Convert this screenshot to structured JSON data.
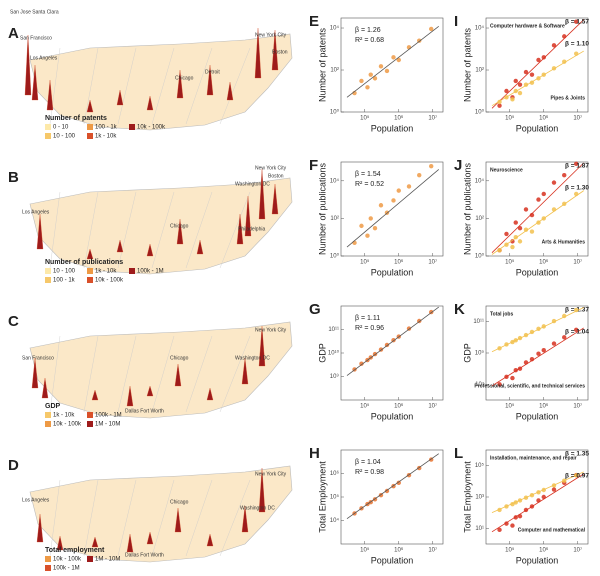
{
  "maps": [
    {
      "label": "A",
      "cities": [
        "San Jose Santa Clara",
        "San Francisco",
        "Los Angeles",
        "Chicago",
        "Detroit",
        "New York City",
        "Boston"
      ],
      "legend_title": "Number of patents",
      "legend": [
        "0 - 10",
        "10 - 100",
        "100 - 1k",
        "1k - 10k",
        "10k - 100k"
      ],
      "legend_colors": [
        "#fde9a9",
        "#f6c86a",
        "#ee9a45",
        "#d9502a",
        "#9e1b1b"
      ]
    },
    {
      "label": "B",
      "cities": [
        "Los Angeles",
        "Chicago",
        "Philadelphia",
        "Washington DC",
        "New York City",
        "Boston"
      ],
      "legend_title": "Number of publications",
      "legend": [
        "10 - 100",
        "100 - 1k",
        "1k - 10k",
        "10k - 100k",
        "100k - 1M"
      ],
      "legend_colors": [
        "#fde9a9",
        "#f6c86a",
        "#ee9a45",
        "#d9502a",
        "#9e1b1b"
      ]
    },
    {
      "label": "C",
      "cities": [
        "San Francisco",
        "Chicago",
        "Dallas Fort Worth",
        "Washington DC",
        "New York City"
      ],
      "legend_title": "GDP",
      "legend": [
        "1k - 10k",
        "10k - 100k",
        "100k - 1M",
        "1M - 10M"
      ],
      "legend_colors": [
        "#f6c86a",
        "#ee9a45",
        "#d9502a",
        "#9e1b1b"
      ]
    },
    {
      "label": "D",
      "cities": [
        "Los Angeles",
        "Chicago",
        "Dallas Fort Worth",
        "Washington DC",
        "New York City"
      ],
      "legend_title": "Total employment",
      "legend": [
        "10k - 100k",
        "100k - 1M",
        "1M - 10M"
      ],
      "legend_colors": [
        "#ee9a45",
        "#d9502a",
        "#9e1b1b"
      ]
    }
  ],
  "chart_data": [
    {
      "type": "scatter",
      "panel_label": "E",
      "xlabel": "Population",
      "ylabel": "Number of patents",
      "log": true,
      "xlim": [
        20000,
        20000000
      ],
      "xticks": [
        {
          "value": 100000,
          "label": "10⁵"
        },
        {
          "value": 1000000,
          "label": "10⁶"
        },
        {
          "value": 10000000,
          "label": "10⁷"
        }
      ],
      "ylim": [
        1,
        30000
      ],
      "yticks": [
        {
          "value": 1,
          "label": "10⁰"
        },
        {
          "value": 100,
          "label": "10²"
        },
        {
          "value": 10000,
          "label": "10⁴"
        }
      ],
      "annotations": [
        "β = 1.26",
        "R² = 0.68"
      ],
      "x": [
        50000,
        80000,
        120000,
        150000,
        200000,
        300000,
        450000,
        700000,
        1000000,
        2000000,
        4000000,
        9000000
      ],
      "series": [
        {
          "color": "#ee9a45",
          "values": [
            8,
            30,
            15,
            60,
            40,
            150,
            90,
            400,
            300,
            1200,
            2500,
            9000
          ],
          "trend_x": [
            30000,
            15000000
          ],
          "trend_y": [
            5,
            12000
          ]
        }
      ]
    },
    {
      "type": "scatter",
      "panel_label": "F",
      "xlabel": "Population",
      "ylabel": "Number of publications",
      "log": true,
      "xlim": [
        20000,
        20000000
      ],
      "xticks": [
        {
          "value": 100000,
          "label": "10⁵"
        },
        {
          "value": 1000000,
          "label": "10⁶"
        },
        {
          "value": 10000000,
          "label": "10⁷"
        }
      ],
      "ylim": [
        1,
        100000
      ],
      "yticks": [
        {
          "value": 1,
          "label": "10⁰"
        },
        {
          "value": 100,
          "label": "10²"
        },
        {
          "value": 10000,
          "label": "10⁴"
        }
      ],
      "annotations": [
        "β = 1.54",
        "R² = 0.52"
      ],
      "x": [
        50000,
        80000,
        120000,
        150000,
        200000,
        300000,
        450000,
        700000,
        1000000,
        2000000,
        4000000,
        9000000
      ],
      "series": [
        {
          "color": "#ee9a45",
          "values": [
            5,
            40,
            12,
            100,
            30,
            500,
            200,
            900,
            3000,
            5000,
            20000,
            60000
          ],
          "trend_x": [
            30000,
            15000000
          ],
          "trend_y": [
            3,
            40000
          ]
        }
      ]
    },
    {
      "type": "scatter",
      "panel_label": "G",
      "xlabel": "Population",
      "ylabel": "GDP",
      "log": true,
      "xlim": [
        20000,
        20000000
      ],
      "xticks": [
        {
          "value": 100000,
          "label": "10⁵"
        },
        {
          "value": 1000000,
          "label": "10⁶"
        },
        {
          "value": 10000000,
          "label": "10⁷"
        }
      ],
      "ylim": [
        100000000,
        1000000000000
      ],
      "yticks": [
        {
          "value": 1000000000,
          "label": "10⁹"
        },
        {
          "value": 10000000000,
          "label": "10¹⁰"
        },
        {
          "value": 100000000000,
          "label": "10¹¹"
        }
      ],
      "annotations": [
        "β = 1.11",
        "R² = 0.96"
      ],
      "x": [
        50000,
        80000,
        120000,
        150000,
        200000,
        300000,
        450000,
        700000,
        1000000,
        2000000,
        4000000,
        9000000
      ],
      "series": [
        {
          "color": "#e8732f",
          "values": [
            2000000000,
            3500000000,
            5000000000,
            6500000000,
            9000000000,
            14000000000,
            22000000000,
            35000000000,
            50000000000,
            110000000000,
            230000000000,
            550000000000
          ],
          "trend_x": [
            30000,
            15000000
          ],
          "trend_y": [
            1100000000,
            900000000000
          ]
        }
      ]
    },
    {
      "type": "scatter",
      "panel_label": "H",
      "xlabel": "Population",
      "ylabel": "Total Employment",
      "log": true,
      "xlim": [
        20000,
        20000000
      ],
      "xticks": [
        {
          "value": 100000,
          "label": "10⁵"
        },
        {
          "value": 1000000,
          "label": "10⁶"
        },
        {
          "value": 10000000,
          "label": "10⁷"
        }
      ],
      "ylim": [
        1000,
        10000000
      ],
      "yticks": [
        {
          "value": 10000,
          "label": "10⁴"
        },
        {
          "value": 100000,
          "label": "10⁵"
        },
        {
          "value": 1000000,
          "label": "10⁶"
        }
      ],
      "annotations": [
        "β = 1.04",
        "R² = 0.98"
      ],
      "x": [
        50000,
        80000,
        120000,
        150000,
        200000,
        300000,
        450000,
        700000,
        1000000,
        2000000,
        4000000,
        9000000
      ],
      "series": [
        {
          "color": "#e8732f",
          "values": [
            20000,
            33000,
            50000,
            60000,
            80000,
            120000,
            180000,
            290000,
            400000,
            850000,
            1700000,
            3900000
          ],
          "trend_x": [
            30000,
            15000000
          ],
          "trend_y": [
            12000,
            7000000
          ]
        }
      ]
    },
    {
      "type": "scatter",
      "panel_label": "I",
      "xlabel": "Population",
      "ylabel": "Number of patents",
      "log": true,
      "xlim": [
        20000,
        20000000
      ],
      "xticks": [
        {
          "value": 100000,
          "label": "10⁵"
        },
        {
          "value": 1000000,
          "label": "10⁶"
        },
        {
          "value": 10000000,
          "label": "10⁷"
        }
      ],
      "ylim": [
        1,
        30000
      ],
      "yticks": [
        {
          "value": 1,
          "label": "10⁰"
        },
        {
          "value": 100,
          "label": "10²"
        },
        {
          "value": 10000,
          "label": "10⁴"
        }
      ],
      "x": [
        50000,
        80000,
        120000,
        150000,
        200000,
        300000,
        450000,
        700000,
        1000000,
        2000000,
        4000000,
        9000000
      ],
      "series": [
        {
          "name": "Computer hardware & Software",
          "beta": "β = 1.57",
          "color": "#d7301f",
          "values": [
            2,
            10,
            5,
            30,
            20,
            80,
            60,
            300,
            400,
            1500,
            4000,
            20000
          ],
          "trend_x": [
            30000,
            15000000
          ],
          "trend_y": [
            1.5,
            25000
          ]
        },
        {
          "name": "Pipes & Joints",
          "beta": "β = 1.10",
          "color": "#f2c14e",
          "values": [
            3,
            5,
            4,
            10,
            8,
            20,
            25,
            40,
            60,
            120,
            250,
            600
          ],
          "trend_x": [
            30000,
            15000000
          ],
          "trend_y": [
            2,
            800
          ]
        }
      ]
    },
    {
      "type": "scatter",
      "panel_label": "J",
      "xlabel": "Population",
      "ylabel": "Number of publications",
      "log": true,
      "xlim": [
        20000,
        20000000
      ],
      "xticks": [
        {
          "value": 100000,
          "label": "10⁵"
        },
        {
          "value": 1000000,
          "label": "10⁶"
        },
        {
          "value": 10000000,
          "label": "10⁷"
        }
      ],
      "ylim": [
        1,
        100000
      ],
      "yticks": [
        {
          "value": 1,
          "label": "10⁰"
        },
        {
          "value": 100,
          "label": "10²"
        },
        {
          "value": 10000,
          "label": "10⁴"
        }
      ],
      "x": [
        50000,
        80000,
        120000,
        150000,
        200000,
        300000,
        450000,
        700000,
        1000000,
        2000000,
        4000000,
        9000000
      ],
      "series": [
        {
          "name": "Neuroscience",
          "beta": "β = 1.87",
          "color": "#d7301f",
          "values": [
            2,
            15,
            6,
            60,
            30,
            300,
            150,
            1000,
            2000,
            8000,
            20000,
            80000
          ],
          "trend_x": [
            30000,
            15000000
          ],
          "trend_y": [
            1.5,
            90000
          ]
        },
        {
          "name": "Arts & Humanities",
          "beta": "β = 1.30",
          "color": "#f2c14e",
          "values": [
            2,
            4,
            3,
            10,
            6,
            25,
            20,
            60,
            100,
            300,
            600,
            2000
          ],
          "trend_x": [
            30000,
            15000000
          ],
          "trend_y": [
            1.2,
            3000
          ]
        }
      ]
    },
    {
      "type": "scatter",
      "panel_label": "K",
      "xlabel": "Population",
      "ylabel": "GDP",
      "log": true,
      "xlim": [
        20000,
        20000000
      ],
      "xticks": [
        {
          "value": 100000,
          "label": "10⁵"
        },
        {
          "value": 1000000,
          "label": "10⁶"
        },
        {
          "value": 10000000,
          "label": "10⁷"
        }
      ],
      "ylim": [
        1000000,
        1000000000000
      ],
      "yticks": [
        {
          "value": 10000000,
          "label": "10⁷"
        },
        {
          "value": 1000000000,
          "label": "10⁹"
        },
        {
          "value": 100000000000,
          "label": "10¹¹"
        }
      ],
      "x": [
        50000,
        80000,
        120000,
        150000,
        200000,
        300000,
        450000,
        700000,
        1000000,
        2000000,
        4000000,
        9000000
      ],
      "series": [
        {
          "name": "Professional, scientific, and technical services",
          "beta": "β = 1.37",
          "color": "#d7301f",
          "values": [
            10000000,
            30000000,
            25000000,
            80000000,
            100000000,
            250000000,
            400000000,
            900000000,
            1500000000,
            4000000000,
            10000000000,
            30000000000
          ],
          "trend_x": [
            30000,
            15000000
          ],
          "trend_y": [
            8000000,
            40000000000
          ]
        },
        {
          "name": "Total jobs",
          "beta": "β = 1.04",
          "color": "#f2c14e",
          "values": [
            2000000000,
            3500000000,
            5000000000,
            6500000000,
            9000000000,
            14000000000,
            22000000000,
            35000000000,
            50000000000,
            110000000000,
            230000000000,
            550000000000
          ],
          "trend_x": [
            30000,
            15000000
          ],
          "trend_y": [
            1200000000,
            800000000000
          ]
        }
      ]
    },
    {
      "type": "scatter",
      "panel_label": "L",
      "xlabel": "Population",
      "ylabel": "Total Employment",
      "log": true,
      "xlim": [
        20000,
        20000000
      ],
      "xticks": [
        {
          "value": 100000,
          "label": "10⁵"
        },
        {
          "value": 1000000,
          "label": "10⁶"
        },
        {
          "value": 10000000,
          "label": "10⁷"
        }
      ],
      "ylim": [
        1,
        1000000
      ],
      "yticks": [
        {
          "value": 10,
          "label": "10¹"
        },
        {
          "value": 1000,
          "label": "10³"
        },
        {
          "value": 100000,
          "label": "10⁵"
        }
      ],
      "x": [
        50000,
        80000,
        120000,
        150000,
        200000,
        300000,
        450000,
        700000,
        1000000,
        2000000,
        4000000,
        9000000
      ],
      "series": [
        {
          "name": "Computer and mathematical",
          "beta": "β = 1.35",
          "color": "#d7301f",
          "values": [
            8,
            20,
            15,
            50,
            60,
            150,
            250,
            600,
            1000,
            3000,
            8000,
            25000
          ],
          "trend_x": [
            30000,
            15000000
          ],
          "trend_y": [
            6,
            30000
          ]
        },
        {
          "name": "Installation, maintenance, and repair",
          "beta": "β = 0.97",
          "color": "#f2c14e",
          "values": [
            150,
            250,
            350,
            450,
            600,
            900,
            1300,
            2000,
            2800,
            5500,
            11000,
            24000
          ],
          "trend_x": [
            30000,
            15000000
          ],
          "trend_y": [
            100,
            40000
          ]
        }
      ]
    }
  ]
}
